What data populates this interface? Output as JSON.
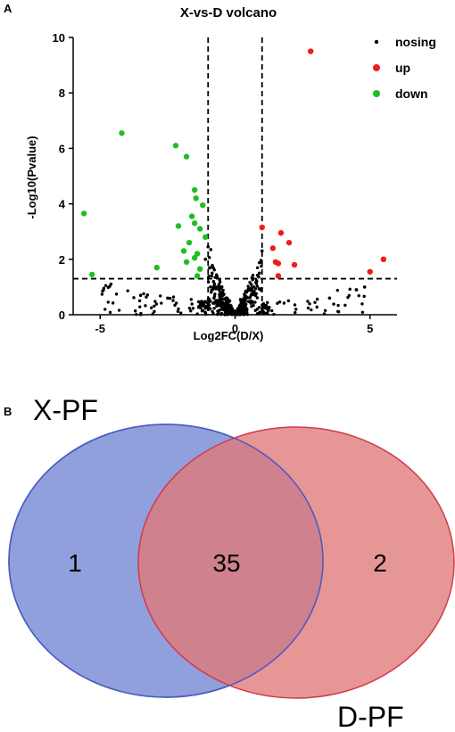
{
  "panel_a_label": "A",
  "panel_b_label": "B",
  "chart_data": [
    {
      "type": "scatter",
      "title": "X-vs-D volcano",
      "xlabel": "Log2FC(D/X)",
      "ylabel": "-Log10(Pvalue)",
      "xlim": [
        -6,
        6
      ],
      "ylim": [
        0,
        10
      ],
      "xticks": [
        -5,
        0,
        5
      ],
      "yticks": [
        0,
        2,
        4,
        6,
        8,
        10
      ],
      "thresholds": {
        "log2fc": [
          -1,
          1
        ],
        "neg_log10_p": 1.3
      },
      "legend": {
        "position": "top-right",
        "entries": [
          "nosing",
          "up",
          "down"
        ]
      },
      "colors": {
        "nosing": "#000000",
        "up": "#ee1c1c",
        "down": "#1fbf1f"
      },
      "series": [
        {
          "name": "up",
          "points": [
            [
              2.8,
              9.5
            ],
            [
              1.0,
              3.15
            ],
            [
              1.7,
              2.95
            ],
            [
              2.0,
              2.6
            ],
            [
              1.4,
              2.4
            ],
            [
              1.5,
              1.9
            ],
            [
              1.6,
              1.85
            ],
            [
              2.2,
              1.8
            ],
            [
              1.6,
              1.4
            ],
            [
              5.5,
              2.0
            ],
            [
              5.0,
              1.55
            ]
          ]
        },
        {
          "name": "down",
          "points": [
            [
              -4.2,
              6.55
            ],
            [
              -2.2,
              6.1
            ],
            [
              -1.8,
              5.7
            ],
            [
              -5.6,
              3.65
            ],
            [
              -1.5,
              4.5
            ],
            [
              -1.45,
              4.2
            ],
            [
              -1.2,
              3.95
            ],
            [
              -1.6,
              3.55
            ],
            [
              -1.5,
              3.3
            ],
            [
              -2.1,
              3.2
            ],
            [
              -1.3,
              3.1
            ],
            [
              -1.7,
              2.6
            ],
            [
              -1.1,
              2.8
            ],
            [
              -1.9,
              2.3
            ],
            [
              -1.4,
              2.2
            ],
            [
              -1.5,
              2.05
            ],
            [
              -1.8,
              1.9
            ],
            [
              -2.9,
              1.7
            ],
            [
              -1.3,
              1.65
            ],
            [
              -5.3,
              1.45
            ],
            [
              -1.4,
              1.4
            ]
          ]
        },
        {
          "name": "nosing",
          "points": [
            [
              -1.0,
              2.45
            ],
            [
              -0.9,
              2.35
            ],
            [
              -1.1,
              2.0
            ],
            [
              -0.95,
              1.7
            ],
            [
              -0.85,
              1.5
            ],
            [
              -0.8,
              1.2
            ],
            [
              -0.6,
              0.9
            ],
            [
              -0.5,
              0.8
            ],
            [
              -0.3,
              0.6
            ],
            [
              -0.2,
              0.5
            ],
            [
              0.2,
              0.55
            ],
            [
              0.4,
              0.85
            ],
            [
              0.6,
              0.9
            ],
            [
              0.8,
              1.2
            ],
            [
              0.9,
              1.5
            ],
            [
              0.95,
              1.9
            ],
            [
              1.0,
              2.3
            ],
            [
              0.7,
              1.0
            ],
            [
              -0.7,
              1.0
            ],
            [
              -4.6,
              1.1
            ],
            [
              -3.5,
              0.7
            ],
            [
              -2.5,
              0.6
            ],
            [
              3.5,
              0.6
            ],
            [
              4.5,
              0.9
            ],
            [
              4.8,
              1.0
            ]
          ]
        }
      ]
    },
    {
      "type": "venn",
      "sets": [
        {
          "name": "X-PF",
          "only": "1",
          "color": "#7c8fd6"
        },
        {
          "name": "D-PF",
          "only": "2",
          "color": "#e07878"
        }
      ],
      "intersection": "35",
      "intersection_color": "#a65a78"
    }
  ]
}
